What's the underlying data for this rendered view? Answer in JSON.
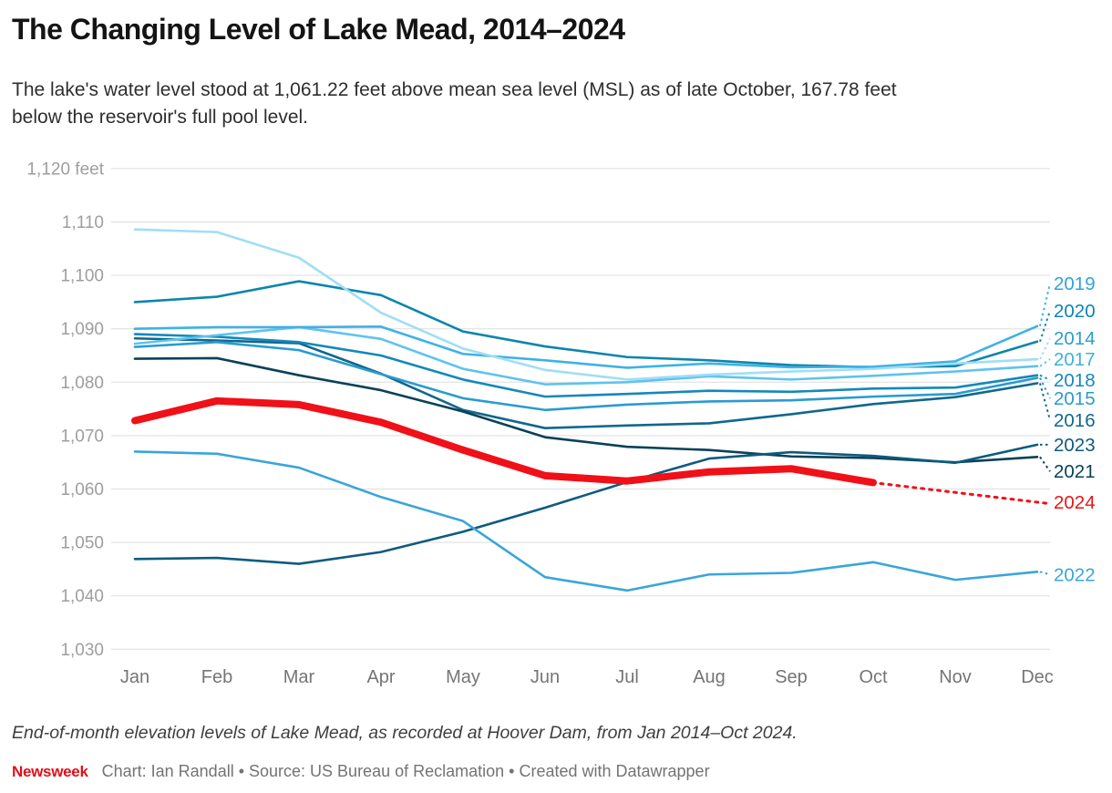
{
  "header": {
    "title": "The Changing Level of Lake Mead, 2014–2024",
    "subtitle": "The lake's water level stood at 1,061.22 feet above mean sea level (MSL) as of late October, 167.78 feet below the reservoir's full pool level."
  },
  "footer": {
    "note": "End-of-month elevation levels of Lake Mead, as recorded at Hoover Dam, from Jan 2014–Oct 2024.",
    "brand": "Newsweek",
    "brand_color": "#e11017",
    "credits": "Chart: Ian Randall • Source: US Bureau of Reclamation • Created with Datawrapper"
  },
  "chart_data": {
    "type": "line",
    "title": "The Changing Level of Lake Mead, 2014–2024",
    "x_categories": [
      "Jan",
      "Feb",
      "Mar",
      "Apr",
      "May",
      "Jun",
      "Jul",
      "Aug",
      "Sep",
      "Oct",
      "Nov",
      "Dec"
    ],
    "y_axis": {
      "min": 1030,
      "max": 1120,
      "step": 10,
      "unit": "feet",
      "top_tick_label": "1,120 feet"
    },
    "grid": true,
    "grid_color": "#e6e6e6",
    "legend_position": "right-edge-direct-labels",
    "series": [
      {
        "name": "2016",
        "color": "#11678c",
        "label_color": "#11678c",
        "label_value": 1072.9,
        "values": [
          1088.2,
          1087.8,
          1087.3,
          1081.6,
          1074.8,
          1071.4,
          1071.9,
          1072.3,
          1074.0,
          1075.9,
          1077.2,
          1079.8
        ]
      },
      {
        "name": "2015",
        "color": "#2a9bd0",
        "label_color": "#2a9bd0",
        "label_value": 1077.0,
        "values": [
          1086.6,
          1087.5,
          1086.0,
          1081.5,
          1077.0,
          1074.8,
          1075.8,
          1076.4,
          1076.6,
          1077.3,
          1077.8,
          1080.8
        ]
      },
      {
        "name": "2018",
        "color": "#1488ba",
        "label_color": "#1488ba",
        "label_value": 1080.4,
        "values": [
          1089.0,
          1088.5,
          1087.5,
          1085.0,
          1080.5,
          1077.3,
          1077.8,
          1078.4,
          1078.2,
          1078.8,
          1079.0,
          1081.3
        ]
      },
      {
        "name": "2020",
        "color": "#0d85ad",
        "label_color": "#0d85ad",
        "label_value": 1093.4,
        "values": [
          1095.0,
          1096.0,
          1098.9,
          1096.3,
          1089.5,
          1086.7,
          1084.7,
          1084.1,
          1083.2,
          1082.8,
          1083.0,
          1087.6
        ]
      },
      {
        "name": "2017",
        "color": "#5ec3ee",
        "label_color": "#3fb0dc",
        "label_value": 1084.3,
        "values": [
          1087.2,
          1088.8,
          1090.3,
          1088.1,
          1082.5,
          1079.6,
          1080.0,
          1081.1,
          1080.5,
          1081.2,
          1082.0,
          1083.0
        ]
      },
      {
        "name": "2019",
        "color": "#3eb2e5",
        "label_color": "#2da4dc",
        "label_value": 1098.5,
        "values": [
          1090.0,
          1090.3,
          1090.3,
          1090.4,
          1085.3,
          1084.1,
          1082.7,
          1083.5,
          1082.8,
          1082.9,
          1083.9,
          1090.5
        ]
      },
      {
        "name": "2014",
        "color": "#9fdef6",
        "label_color": "#2d9fc6",
        "label_value": 1088.2,
        "values": [
          1108.6,
          1108.1,
          1103.3,
          1093.0,
          1086.3,
          1082.3,
          1080.5,
          1081.4,
          1082.0,
          1082.5,
          1083.5,
          1084.3
        ]
      },
      {
        "name": "2021",
        "color": "#0a4158",
        "label_color": "#0a4158",
        "label_value": 1063.3,
        "values": [
          1084.4,
          1084.5,
          1081.3,
          1078.5,
          1074.5,
          1069.7,
          1067.9,
          1067.3,
          1066.1,
          1065.8,
          1065.0,
          1066.0
        ]
      },
      {
        "name": "2023",
        "color": "#0d5b7e",
        "label_color": "#0d5b7e",
        "label_value": 1068.3,
        "values": [
          1046.9,
          1047.1,
          1046.0,
          1048.2,
          1052.0,
          1056.5,
          1061.3,
          1065.7,
          1066.9,
          1066.2,
          1064.9,
          1068.3
        ]
      },
      {
        "name": "2022",
        "color": "#3aa5da",
        "label_color": "#3aa5da",
        "label_value": 1044.0,
        "values": [
          1067.0,
          1066.6,
          1064.0,
          1058.5,
          1054.0,
          1043.5,
          1041.0,
          1044.0,
          1044.3,
          1046.3,
          1043.0,
          1044.5
        ]
      },
      {
        "name": "2024",
        "color": "#f01018",
        "label_color": "#e81616",
        "label_value": 1057.5,
        "highlight": true,
        "last_value_note": "1,061.22 ft as of late October",
        "values": [
          1072.8,
          1076.5,
          1075.8,
          1072.5,
          1067.3,
          1062.5,
          1061.5,
          1063.2,
          1063.8,
          1061.2
        ]
      }
    ]
  }
}
